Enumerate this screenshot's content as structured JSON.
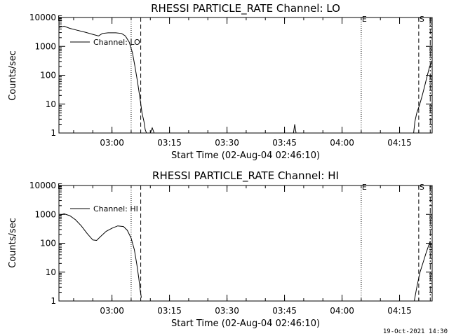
{
  "footer": {
    "timestamp": "19-Oct-2021 14:30"
  },
  "chart_data": [
    {
      "type": "line",
      "title": "RHESSI PARTICLE_RATE Channel: LO",
      "xlabel": "Start Time (02-Aug-04 02:46:10)",
      "ylabel": "Counts/sec",
      "yscale": "log",
      "xlim": [
        "02:46:10",
        "04:23:30"
      ],
      "ylim": [
        1,
        10000
      ],
      "x_ticks": [
        "03:00",
        "03:15",
        "03:30",
        "03:45",
        "04:00",
        "04:15"
      ],
      "y_ticks": [
        "1",
        "10",
        "100",
        "1000",
        "10000"
      ],
      "legend": {
        "placement": "upper-left",
        "entries": [
          "Channel: LO"
        ]
      },
      "markers": [
        {
          "time": "03:05:00",
          "style": "dotted",
          "label": ""
        },
        {
          "time": "03:07:30",
          "style": "dashed",
          "label": ""
        },
        {
          "time": "04:05:00",
          "style": "dotted",
          "label": "E"
        },
        {
          "time": "04:20:00",
          "style": "dashed",
          "label": "S"
        },
        {
          "time": "04:23:00",
          "style": "dash-dot",
          "label": ""
        }
      ],
      "left_marker_label": "E",
      "series": [
        {
          "name": "Channel: LO",
          "segments": [
            [
              [
                "02:46:10",
                4500
              ],
              [
                "02:47:30",
                5000
              ],
              [
                "02:49:00",
                4200
              ],
              [
                "02:51:00",
                3600
              ],
              [
                "02:53:00",
                3100
              ],
              [
                "02:55:00",
                2600
              ],
              [
                "02:56:30",
                2300
              ],
              [
                "02:57:30",
                2800
              ],
              [
                "02:59:00",
                2950
              ],
              [
                "03:01:00",
                2950
              ],
              [
                "03:02:30",
                2800
              ],
              [
                "03:03:30",
                2300
              ],
              [
                "03:04:30",
                1400
              ],
              [
                "03:05:20",
                600
              ],
              [
                "03:06:00",
                200
              ],
              [
                "03:06:40",
                60
              ],
              [
                "03:07:20",
                15
              ],
              [
                "03:07:50",
                5
              ],
              [
                "03:08:20",
                2.5
              ],
              [
                "03:08:40",
                1.3
              ],
              [
                "03:09:00",
                1.0
              ]
            ],
            [
              [
                "03:10:00",
                1.0
              ],
              [
                "03:10:30",
                1.5
              ],
              [
                "03:11:00",
                1.0
              ]
            ],
            [
              [
                "03:47:20",
                1.0
              ],
              [
                "03:47:40",
                2.0
              ],
              [
                "03:48:00",
                1.0
              ]
            ],
            [
              [
                "04:18:40",
                1.0
              ],
              [
                "04:19:00",
                2.5
              ],
              [
                "04:19:30",
                5
              ],
              [
                "04:20:10",
                9
              ],
              [
                "04:20:50",
                18
              ],
              [
                "04:21:30",
                40
              ],
              [
                "04:22:10",
                90
              ],
              [
                "04:22:50",
                200
              ],
              [
                "04:23:30",
                300
              ]
            ]
          ]
        }
      ]
    },
    {
      "type": "line",
      "title": "RHESSI PARTICLE_RATE Channel: HI",
      "xlabel": "Start Time (02-Aug-04 02:46:10)",
      "ylabel": "Counts/sec",
      "yscale": "log",
      "xlim": [
        "02:46:10",
        "04:23:30"
      ],
      "ylim": [
        1,
        10000
      ],
      "x_ticks": [
        "03:00",
        "03:15",
        "03:30",
        "03:45",
        "04:00",
        "04:15"
      ],
      "y_ticks": [
        "1",
        "10",
        "100",
        "1000",
        "10000"
      ],
      "legend": {
        "placement": "upper-left",
        "entries": [
          "Channel: HI"
        ]
      },
      "markers": [
        {
          "time": "03:05:00",
          "style": "dotted",
          "label": ""
        },
        {
          "time": "03:07:30",
          "style": "dashed",
          "label": ""
        },
        {
          "time": "04:05:00",
          "style": "dotted",
          "label": "E"
        },
        {
          "time": "04:20:00",
          "style": "dashed",
          "label": "S"
        },
        {
          "time": "04:23:00",
          "style": "dash-dot",
          "label": ""
        }
      ],
      "left_marker_label": "E",
      "series": [
        {
          "name": "Channel: HI",
          "segments": [
            [
              [
                "02:46:10",
                900
              ],
              [
                "02:47:30",
                1050
              ],
              [
                "02:49:00",
                900
              ],
              [
                "02:50:30",
                650
              ],
              [
                "02:52:00",
                400
              ],
              [
                "02:53:30",
                220
              ],
              [
                "02:55:00",
                130
              ],
              [
                "02:56:00",
                125
              ],
              [
                "02:57:00",
                170
              ],
              [
                "02:58:30",
                260
              ],
              [
                "03:00:00",
                330
              ],
              [
                "03:01:30",
                400
              ],
              [
                "03:03:00",
                380
              ],
              [
                "03:04:00",
                280
              ],
              [
                "03:05:00",
                150
              ],
              [
                "03:05:50",
                60
              ],
              [
                "03:06:30",
                18
              ],
              [
                "03:07:00",
                6
              ],
              [
                "03:07:20",
                2.5
              ],
              [
                "03:07:40",
                1.3
              ]
            ],
            [
              [
                "04:18:50",
                1.0
              ],
              [
                "04:19:30",
                3
              ],
              [
                "04:20:20",
                10
              ],
              [
                "04:21:10",
                22
              ],
              [
                "04:22:00",
                50
              ],
              [
                "04:23:00",
                120
              ]
            ]
          ]
        }
      ]
    }
  ]
}
